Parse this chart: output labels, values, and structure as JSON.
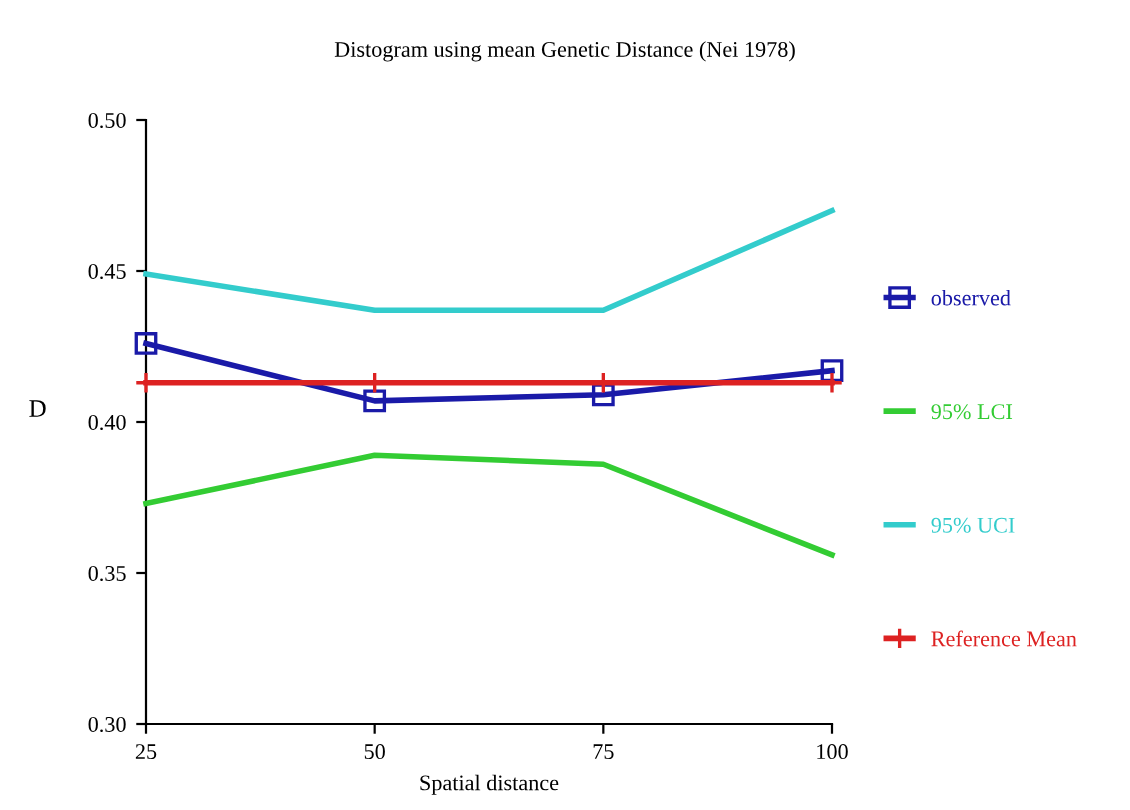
{
  "chart_data": {
    "type": "line",
    "subtitle": "Distogram using mean Genetic Distance (Nei 1978)",
    "xlabel": "Spatial distance",
    "ylabel": "D",
    "x": [
      25,
      50,
      75,
      100
    ],
    "xlim": [
      25,
      100
    ],
    "xticks": [
      25,
      50,
      75,
      100
    ],
    "ylim": [
      0.3,
      0.5
    ],
    "yticks": [
      {
        "value": 0.3,
        "label": "0.30"
      },
      0.35,
      {
        "value": 0.4,
        "label": "0.40"
      },
      0.45,
      {
        "value": 0.5,
        "label": "0.50"
      }
    ],
    "grid": false,
    "legend": "right",
    "series": [
      {
        "name": "observed",
        "color": "#1a1aa8",
        "marker": "square",
        "values": [
          0.426,
          0.407,
          0.409,
          0.417
        ]
      },
      {
        "name": "95% LCI",
        "color": "#33cc33",
        "marker": "none",
        "values": [
          0.373,
          0.389,
          0.386,
          0.356
        ]
      },
      {
        "name": "95% UCI",
        "color": "#33cccc",
        "marker": "none",
        "values": [
          0.449,
          0.437,
          0.437,
          0.47
        ]
      },
      {
        "name": "Reference Mean",
        "color": "#dd2222",
        "marker": "cross",
        "values": [
          0.413,
          0.413,
          0.413,
          0.413
        ]
      }
    ]
  }
}
